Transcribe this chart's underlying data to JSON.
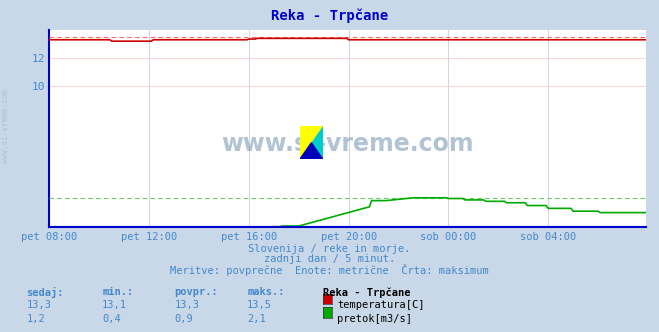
{
  "title": "Reka - Trpčane",
  "outer_bg": "#c8d8e8",
  "plot_bg": "#ffffff",
  "xlim": [
    0,
    287
  ],
  "ylim": [
    0,
    14.0
  ],
  "y_ticks": [
    10,
    12
  ],
  "y_tick_labels": [
    "10",
    "12"
  ],
  "x_tick_positions": [
    0,
    48,
    96,
    144,
    192,
    240
  ],
  "x_tick_labels": [
    "pet 08:00",
    "pet 12:00",
    "pet 16:00",
    "pet 20:00",
    "sob 00:00",
    "sob 04:00"
  ],
  "temp_color": "#cc0000",
  "temp_max_color": "#ff6666",
  "flow_color": "#00aa00",
  "flow_max_color": "#66cc66",
  "flow_max_value": 2.1,
  "temp_base": 13.3,
  "temp_max": 13.5,
  "watermark_text": "www.si-vreme.com",
  "watermark_color": "#6688aa",
  "subtitle1": "Slovenija / reke in morje.",
  "subtitle2": "zadnji dan / 5 minut.",
  "subtitle3": "Meritve: povprečne  Enote: metrične  Črta: maksimum",
  "text_color": "#4488cc",
  "table_headers": [
    "sedaj:",
    "min.:",
    "povpr.:",
    "maks.:"
  ],
  "station_name": "Reka - Trpčane",
  "temp_row": [
    "13,3",
    "13,1",
    "13,3",
    "13,5"
  ],
  "flow_row": [
    "1,2",
    "0,4",
    "0,9",
    "2,1"
  ],
  "legend_temp": "temperatura[C]",
  "legend_flow": "pretok[m3/s]",
  "grid_color_h": "#ffcccc",
  "grid_color_v": "#ccccdd",
  "spine_color_left": "#0000cc",
  "spine_color_bottom": "#0000cc",
  "left_label_color": "#4488cc",
  "bottom_label_color": "#4488cc"
}
